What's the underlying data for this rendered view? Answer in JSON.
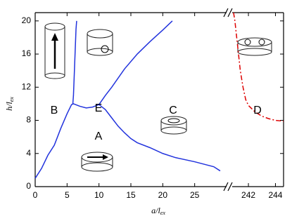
{
  "chart_data": {
    "type": "line",
    "xlabel": {
      "main": "a/l",
      "sub": "ex"
    },
    "ylabel": {
      "main": "h/l",
      "sub": "ex"
    },
    "x_segments": [
      {
        "xlim": [
          0,
          30
        ],
        "xticks": [
          0,
          5,
          10,
          15,
          20,
          25
        ]
      },
      {
        "xlim": [
          240.8,
          244.6
        ],
        "xticks": [
          242,
          244
        ]
      }
    ],
    "ylim": [
      0,
      21
    ],
    "yticks": [
      0,
      4,
      8,
      12,
      16,
      20
    ],
    "annotations": [
      "B",
      "E",
      "C",
      "D",
      "A"
    ],
    "series": [
      {
        "color": "#2233dd",
        "dash": "solid",
        "segment": 0,
        "x": [
          0,
          1,
          2,
          3,
          4,
          5,
          5.7,
          6,
          7,
          8,
          9,
          10,
          11,
          12,
          13,
          14,
          15,
          16,
          18,
          20,
          22,
          25,
          27,
          28,
          29
        ],
        "values": [
          1,
          2.2,
          3.8,
          5,
          7,
          8.8,
          9.9,
          10,
          9.7,
          9.5,
          9.6,
          9.9,
          9.3,
          8.3,
          7.3,
          6.5,
          5.8,
          5.3,
          4.7,
          4,
          3.5,
          3,
          2.6,
          2.4,
          1.9
        ]
      },
      {
        "color": "#2233dd",
        "dash": "solid",
        "segment": 0,
        "x": [
          5.9,
          6,
          6.1,
          6.2,
          6.3,
          6.4,
          6.5
        ],
        "values": [
          10,
          11,
          13,
          15,
          17,
          19,
          20
        ]
      },
      {
        "color": "#2233dd",
        "dash": "solid",
        "segment": 0,
        "x": [
          10,
          11,
          12,
          14,
          16,
          18,
          20,
          21.5
        ],
        "values": [
          9.9,
          11,
          12,
          14.2,
          16,
          17.5,
          18.9,
          20
        ]
      },
      {
        "color": "#dd0000",
        "dash": "dashdot",
        "segment": 1,
        "x": [
          240.9,
          241,
          241.2,
          241.4,
          241.6,
          241.8,
          242,
          242.5,
          243,
          243.5,
          244,
          244.6
        ],
        "values": [
          21,
          20,
          17,
          14,
          12,
          10.5,
          9.8,
          9,
          8.5,
          8.2,
          8,
          7.9
        ]
      }
    ]
  }
}
